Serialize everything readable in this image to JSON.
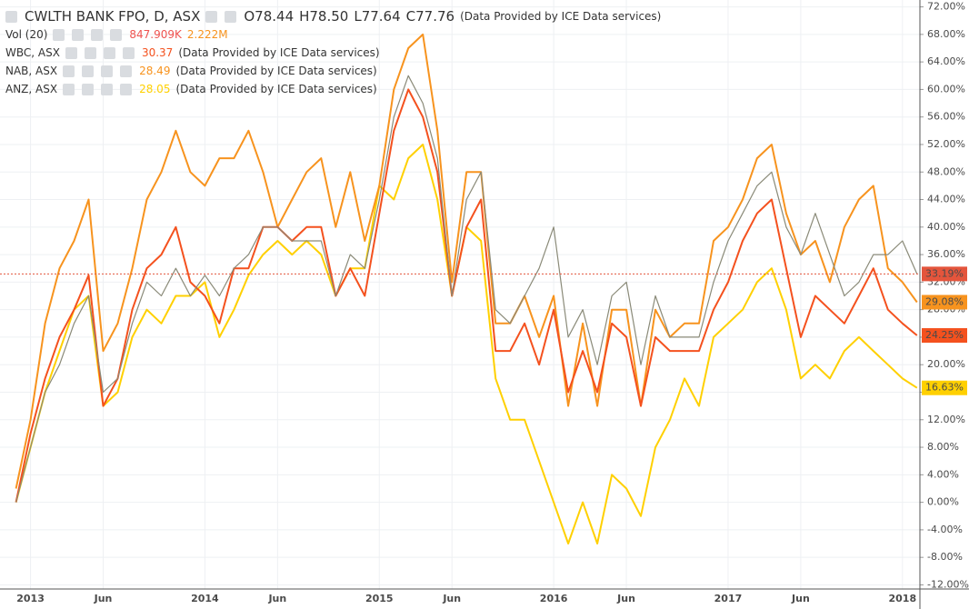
{
  "chart_data": {
    "type": "line",
    "x": [
      -1,
      0,
      1,
      2,
      3,
      4,
      5,
      6,
      7,
      8,
      9,
      10,
      11,
      12,
      13,
      14,
      15,
      16,
      17,
      18,
      19,
      20,
      21,
      22,
      23,
      24,
      25,
      26,
      27,
      28,
      29,
      30,
      31,
      32,
      33,
      34,
      35,
      36,
      37,
      38,
      39,
      40,
      41,
      42,
      43,
      44,
      45,
      46,
      47,
      48,
      49,
      50,
      51,
      52,
      53,
      54,
      55,
      56,
      57,
      58,
      59,
      60,
      61
    ],
    "xlim": [
      -2.1,
      61.2
    ],
    "xticks": [
      {
        "value": 0,
        "label": "2013"
      },
      {
        "value": 5,
        "label": "Jun"
      },
      {
        "value": 12,
        "label": "2014"
      },
      {
        "value": 17,
        "label": "Jun"
      },
      {
        "value": 24,
        "label": "2015"
      },
      {
        "value": 29,
        "label": "Jun"
      },
      {
        "value": 36,
        "label": "2016"
      },
      {
        "value": 41,
        "label": "Jun"
      },
      {
        "value": 48,
        "label": "2017"
      },
      {
        "value": 53,
        "label": "Jun"
      },
      {
        "value": 60,
        "label": "2018"
      }
    ],
    "ylim": [
      -12.6,
      73
    ],
    "yticks": [
      {
        "value": 72,
        "label": "72.00%"
      },
      {
        "value": 68,
        "label": "68.00%"
      },
      {
        "value": 64,
        "label": "64.00%"
      },
      {
        "value": 60,
        "label": "60.00%"
      },
      {
        "value": 56,
        "label": "56.00%"
      },
      {
        "value": 52,
        "label": "52.00%"
      },
      {
        "value": 48,
        "label": "48.00%"
      },
      {
        "value": 44,
        "label": "44.00%"
      },
      {
        "value": 40,
        "label": "40.00%"
      },
      {
        "value": 36,
        "label": "36.00%"
      },
      {
        "value": 32,
        "label": "32.00%"
      },
      {
        "value": 28,
        "label": "28.00%"
      },
      {
        "value": 24,
        "label": "24.00%"
      },
      {
        "value": 20,
        "label": "20.00%"
      },
      {
        "value": 16,
        "label": "16.00%"
      },
      {
        "value": 12,
        "label": "12.00%"
      },
      {
        "value": 8,
        "label": "8.00%"
      },
      {
        "value": 4,
        "label": "4.00%"
      },
      {
        "value": 0,
        "label": "0.00%"
      },
      {
        "value": -4,
        "label": "-4.00%"
      },
      {
        "value": -8,
        "label": "-8.00%"
      },
      {
        "value": -12,
        "label": "-12.00%"
      }
    ],
    "grid": true,
    "volume_legend": {
      "name": "Vol (20)",
      "values": [
        "847.909K",
        "2.222M"
      ],
      "colors": [
        "#ef5350",
        "#f7931e"
      ]
    },
    "series": [
      {
        "name": "CWLTH BANK FPO, D, ASX",
        "color": "#8a8a78",
        "badge_color": "#e4553c",
        "ohlc": [
          "O78.44",
          "H78.50",
          "L77.64",
          "C77.76"
        ],
        "source": "(Data Provided by ICE Data services)",
        "last_label": "33.19%",
        "values": [
          0,
          8,
          16,
          20,
          26,
          30,
          16,
          18,
          26,
          32,
          30,
          34,
          30,
          33,
          30,
          34,
          36,
          40,
          40,
          38,
          38,
          38,
          30,
          36,
          34,
          44,
          56,
          62,
          58,
          50,
          30,
          44,
          48,
          28,
          26,
          30,
          34,
          40,
          24,
          28,
          20,
          30,
          32,
          20,
          30,
          24,
          24,
          24,
          32,
          38,
          42,
          46,
          48,
          40,
          36,
          42,
          36,
          30,
          32,
          36,
          36,
          38,
          33.19
        ]
      },
      {
        "name": "WBC, ASX",
        "color": "#f4511e",
        "badge_color": "#f4511e",
        "price": "30.37",
        "source": "(Data Provided by ICE Data services)",
        "last_label": "24.25%",
        "values": [
          0,
          10,
          18,
          24,
          28,
          33,
          14,
          18,
          28,
          34,
          36,
          40,
          32,
          30,
          26,
          34,
          34,
          40,
          40,
          38,
          40,
          40,
          30,
          34,
          30,
          42,
          54,
          60,
          56,
          48,
          30,
          40,
          44,
          22,
          22,
          26,
          20,
          28,
          16,
          22,
          16,
          26,
          24,
          14,
          24,
          22,
          22,
          22,
          28,
          32,
          38,
          42,
          44,
          34,
          24,
          30,
          28,
          26,
          30,
          34,
          28,
          26,
          24.25
        ]
      },
      {
        "name": "NAB, ASX",
        "color": "#f7931e",
        "badge_color": "#f7931e",
        "price": "28.49",
        "source": "(Data Provided by ICE Data services)",
        "last_label": "29.08%",
        "values": [
          2,
          12,
          26,
          34,
          38,
          44,
          22,
          26,
          34,
          44,
          48,
          54,
          48,
          46,
          50,
          50,
          54,
          48,
          40,
          44,
          48,
          50,
          40,
          48,
          38,
          46,
          60,
          66,
          68,
          54,
          32,
          48,
          48,
          26,
          26,
          30,
          24,
          30,
          14,
          26,
          14,
          28,
          28,
          14,
          28,
          24,
          26,
          26,
          38,
          40,
          44,
          50,
          52,
          42,
          36,
          38,
          32,
          40,
          44,
          46,
          34,
          32,
          29.08
        ]
      },
      {
        "name": "ANZ, ASX",
        "color": "#ffd000",
        "badge_color": "#ffd000",
        "price": "28.05",
        "source": "(Data Provided by ICE Data services)",
        "last_label": "16.63%",
        "values": [
          0,
          8,
          16,
          22,
          28,
          30,
          14,
          16,
          24,
          28,
          26,
          30,
          30,
          32,
          24,
          28,
          33,
          36,
          38,
          36,
          38,
          36,
          30,
          34,
          34,
          46,
          44,
          50,
          52,
          44,
          30,
          40,
          38,
          18,
          12,
          12,
          6,
          0,
          -6,
          0,
          -6,
          4,
          2,
          -2,
          8,
          12,
          18,
          14,
          24,
          26,
          28,
          32,
          34,
          28,
          18,
          20,
          18,
          22,
          24,
          22,
          20,
          18,
          16.63
        ]
      }
    ]
  }
}
